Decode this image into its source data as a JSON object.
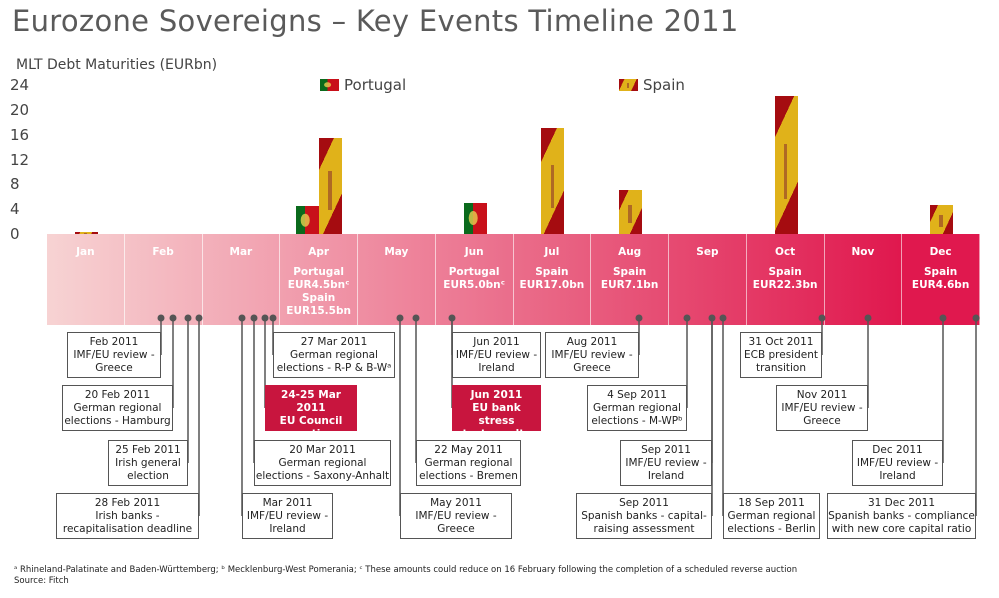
{
  "title": "Eurozone Sovereigns – Key Events Timeline 2011",
  "chart_data": {
    "type": "bar",
    "ylabel": "MLT Debt Maturities (EURbn)",
    "ylim": [
      0,
      24
    ],
    "yticks": [
      "0",
      "4",
      "8",
      "12",
      "16",
      "20",
      "24"
    ],
    "categories": [
      "Jan",
      "Feb",
      "Mar",
      "Apr",
      "May",
      "Jun",
      "Jul",
      "Aug",
      "Sep",
      "Oct",
      "Nov",
      "Dec"
    ],
    "series": [
      {
        "name": "Portugal",
        "values": [
          0,
          0,
          0,
          4.5,
          0,
          5.0,
          0,
          0,
          0,
          0,
          0,
          0
        ]
      },
      {
        "name": "Spain",
        "values": [
          0.3,
          0,
          0,
          15.5,
          0,
          0,
          17.0,
          7.1,
          0,
          22.3,
          0,
          4.6
        ]
      }
    ],
    "legend": "top",
    "grid": false,
    "month_labels": [
      [],
      [],
      [],
      [
        "Portugal",
        "EUR4.5bnᶜ",
        "Spain",
        "EUR15.5bn"
      ],
      [],
      [
        "Portugal",
        "EUR5.0bnᶜ"
      ],
      [
        "Spain",
        "EUR17.0bn"
      ],
      [
        "Spain",
        "EUR7.1bn"
      ],
      [],
      [
        "Spain",
        "EUR22.3bn"
      ],
      [],
      [
        "Spain",
        "EUR4.6bn"
      ]
    ]
  },
  "colors": {
    "band_start": "#f7d3d3",
    "band_end": "#e0184e",
    "highlight": "#c8153e"
  },
  "events": [
    {
      "date": "Feb 2011",
      "desc": [
        "IMF/EU review -",
        "Greece"
      ]
    },
    {
      "date": "20 Feb 2011",
      "desc": [
        "German regional",
        "elections - Hamburg"
      ]
    },
    {
      "date": "25 Feb 2011",
      "desc": [
        "Irish general",
        "election"
      ]
    },
    {
      "date": "28 Feb 2011",
      "desc": [
        "Irish banks -",
        "recapitalisation deadline"
      ]
    },
    {
      "date": "27 Mar 2011",
      "desc": [
        "German regional",
        "elections - R-P & B-Wᵃ"
      ]
    },
    {
      "date": "24-25 Mar 2011",
      "desc": [
        "EU Council",
        "meeting"
      ],
      "highlight": true
    },
    {
      "date": "20 Mar 2011",
      "desc": [
        "German regional",
        "elections - Saxony-Anhalt"
      ]
    },
    {
      "date": "Mar 2011",
      "desc": [
        "IMF/EU review -",
        "Ireland"
      ]
    },
    {
      "date": "22 May 2011",
      "desc": [
        "German regional",
        "elections - Bremen"
      ]
    },
    {
      "date": "May 2011",
      "desc": [
        "IMF/EU review -",
        "Greece"
      ]
    },
    {
      "date": "Jun 2011",
      "desc": [
        "IMF/EU review -",
        "Ireland"
      ]
    },
    {
      "date": "Jun 2011",
      "desc": [
        "EU bank stress",
        "test results"
      ],
      "highlight": true
    },
    {
      "date": "Aug 2011",
      "desc": [
        "IMF/EU review -",
        "Greece"
      ]
    },
    {
      "date": "4 Sep 2011",
      "desc": [
        "German regional",
        "elections - M-WPᵇ"
      ]
    },
    {
      "date": "Sep 2011",
      "desc": [
        "IMF/EU review -",
        "Ireland"
      ]
    },
    {
      "date": "Sep 2011",
      "desc": [
        "Spanish banks - capital-",
        "raising assessment"
      ]
    },
    {
      "date": "18 Sep 2011",
      "desc": [
        "German regional",
        "elections - Berlin"
      ]
    },
    {
      "date": "31 Oct 2011",
      "desc": [
        "ECB president",
        "transition"
      ]
    },
    {
      "date": "Nov 2011",
      "desc": [
        "IMF/EU review -",
        "Greece"
      ]
    },
    {
      "date": "Dec 2011",
      "desc": [
        "IMF/EU review -",
        "Ireland"
      ]
    },
    {
      "date": "31 Dec 2011",
      "desc": [
        "Spanish banks - compliance",
        "with new core capital ratio"
      ]
    }
  ],
  "footnotes": [
    "ᵃ Rhineland-Palatinate and Baden-Württemberg; ᵇ Mecklenburg-West Pomerania; ᶜ These amounts could reduce on 16 February following the completion of a scheduled reverse auction",
    "Source: Fitch"
  ]
}
